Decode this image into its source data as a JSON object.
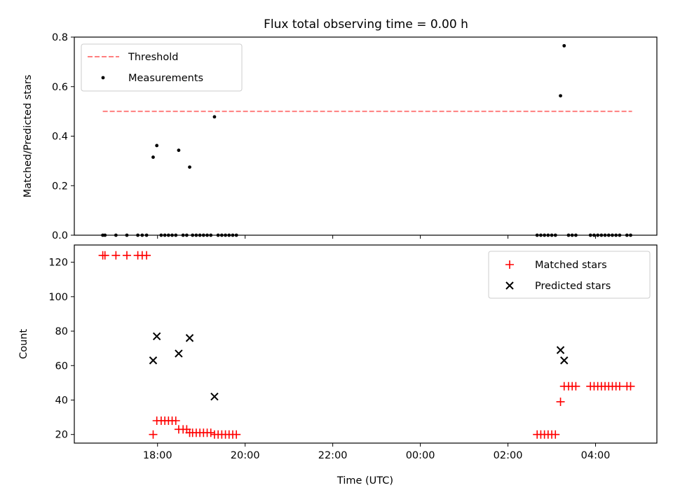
{
  "chart_data": [
    {
      "type": "scatter",
      "title": "Flux total observing time = 0.00 h",
      "xlabel": "",
      "ylabel": "Matched/Predicted stars",
      "xlim": [
        "16:06",
        "05:24"
      ],
      "ylim": [
        0,
        0.8
      ],
      "x_ticks": [
        "18:00",
        "20:00",
        "22:00",
        "00:00",
        "02:00",
        "04:00"
      ],
      "x_ticklabels_visible": false,
      "y_ticks": [
        "0.0",
        "0.2",
        "0.4",
        "0.6",
        "0.8"
      ],
      "legend": {
        "position": "upper left",
        "entries": [
          "Threshold",
          "Measurements"
        ]
      },
      "threshold": {
        "name": "Threshold",
        "y": 0.5,
        "x_start": "16:45",
        "x_end": "04:50",
        "color": "#ff7f7f",
        "style": "dashed"
      },
      "series": [
        {
          "name": "Measurements",
          "marker": "dot",
          "color": "#000000",
          "points": [
            [
              "16:45",
              0
            ],
            [
              "16:48",
              0
            ],
            [
              "17:03",
              0
            ],
            [
              "17:18",
              0
            ],
            [
              "17:33",
              0
            ],
            [
              "17:39",
              0
            ],
            [
              "17:45",
              0
            ],
            [
              "17:54",
              0.315
            ],
            [
              "17:59",
              0.362
            ],
            [
              "18:05",
              0
            ],
            [
              "18:10",
              0
            ],
            [
              "18:15",
              0
            ],
            [
              "18:20",
              0
            ],
            [
              "18:25",
              0
            ],
            [
              "18:29",
              0.343
            ],
            [
              "18:35",
              0
            ],
            [
              "18:40",
              0
            ],
            [
              "18:44",
              0.275
            ],
            [
              "18:48",
              0
            ],
            [
              "18:53",
              0
            ],
            [
              "18:58",
              0
            ],
            [
              "19:03",
              0
            ],
            [
              "19:08",
              0
            ],
            [
              "19:13",
              0
            ],
            [
              "19:18",
              0.478
            ],
            [
              "19:23",
              0
            ],
            [
              "19:28",
              0
            ],
            [
              "19:33",
              0
            ],
            [
              "19:38",
              0
            ],
            [
              "19:43",
              0
            ],
            [
              "19:48",
              0
            ],
            [
              "02:40",
              0
            ],
            [
              "02:45",
              0
            ],
            [
              "02:50",
              0
            ],
            [
              "02:55",
              0
            ],
            [
              "03:00",
              0
            ],
            [
              "03:05",
              0
            ],
            [
              "03:12",
              0.563
            ],
            [
              "03:17",
              0.765
            ],
            [
              "03:23",
              0
            ],
            [
              "03:28",
              0
            ],
            [
              "03:33",
              0
            ],
            [
              "03:53",
              0
            ],
            [
              "03:58",
              0
            ],
            [
              "04:03",
              0
            ],
            [
              "04:08",
              0
            ],
            [
              "04:13",
              0
            ],
            [
              "04:18",
              0
            ],
            [
              "04:23",
              0
            ],
            [
              "04:28",
              0
            ],
            [
              "04:33",
              0
            ],
            [
              "04:43",
              0
            ],
            [
              "04:48",
              0
            ]
          ]
        }
      ]
    },
    {
      "type": "scatter",
      "title": "",
      "xlabel": "Time (UTC)",
      "ylabel": "Count",
      "xlim": [
        "16:06",
        "05:24"
      ],
      "ylim": [
        15,
        130
      ],
      "x_ticks": [
        "18:00",
        "20:00",
        "22:00",
        "00:00",
        "02:00",
        "04:00"
      ],
      "y_ticks": [
        "20",
        "40",
        "60",
        "80",
        "100",
        "120"
      ],
      "legend": {
        "position": "upper right",
        "entries": [
          "Matched stars",
          "Predicted stars"
        ]
      },
      "series": [
        {
          "name": "Matched stars",
          "marker": "plus",
          "color": "#ff0000",
          "points": [
            [
              "16:45",
              124
            ],
            [
              "16:48",
              124
            ],
            [
              "17:03",
              124
            ],
            [
              "17:18",
              124
            ],
            [
              "17:33",
              124
            ],
            [
              "17:39",
              124
            ],
            [
              "17:45",
              124
            ],
            [
              "17:54",
              20
            ],
            [
              "17:59",
              28
            ],
            [
              "18:05",
              28
            ],
            [
              "18:10",
              28
            ],
            [
              "18:15",
              28
            ],
            [
              "18:20",
              28
            ],
            [
              "18:25",
              28
            ],
            [
              "18:29",
              23
            ],
            [
              "18:35",
              23
            ],
            [
              "18:40",
              23
            ],
            [
              "18:44",
              21
            ],
            [
              "18:48",
              21
            ],
            [
              "18:53",
              21
            ],
            [
              "18:58",
              21
            ],
            [
              "19:03",
              21
            ],
            [
              "19:08",
              21
            ],
            [
              "19:13",
              21
            ],
            [
              "19:18",
              20
            ],
            [
              "19:23",
              20
            ],
            [
              "19:28",
              20
            ],
            [
              "19:33",
              20
            ],
            [
              "19:38",
              20
            ],
            [
              "19:43",
              20
            ],
            [
              "19:48",
              20
            ],
            [
              "02:40",
              20
            ],
            [
              "02:45",
              20
            ],
            [
              "02:50",
              20
            ],
            [
              "02:55",
              20
            ],
            [
              "03:00",
              20
            ],
            [
              "03:05",
              20
            ],
            [
              "03:12",
              39
            ],
            [
              "03:17",
              48
            ],
            [
              "03:23",
              48
            ],
            [
              "03:28",
              48
            ],
            [
              "03:33",
              48
            ],
            [
              "03:53",
              48
            ],
            [
              "03:58",
              48
            ],
            [
              "04:03",
              48
            ],
            [
              "04:08",
              48
            ],
            [
              "04:13",
              48
            ],
            [
              "04:18",
              48
            ],
            [
              "04:23",
              48
            ],
            [
              "04:28",
              48
            ],
            [
              "04:33",
              48
            ],
            [
              "04:43",
              48
            ],
            [
              "04:48",
              48
            ]
          ]
        },
        {
          "name": "Predicted stars",
          "marker": "x",
          "color": "#000000",
          "points": [
            [
              "17:54",
              63
            ],
            [
              "17:59",
              77
            ],
            [
              "18:29",
              67
            ],
            [
              "18:44",
              76
            ],
            [
              "19:18",
              42
            ],
            [
              "03:12",
              69
            ],
            [
              "03:17",
              63
            ]
          ]
        }
      ]
    }
  ]
}
